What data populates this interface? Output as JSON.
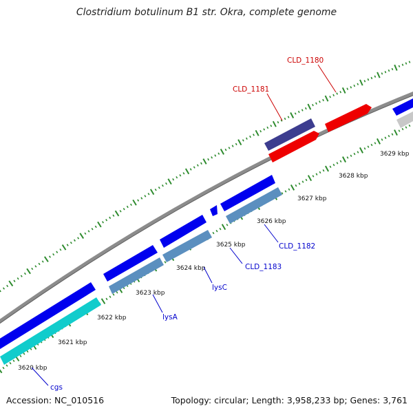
{
  "title": "Clostridium botulinum B1 str. Okra, complete genome",
  "footer": {
    "accession": "Accession: NC_010516",
    "summary": "Topology: circular; Length: 3,958,233 bp; Genes: 3,761"
  },
  "colors": {
    "backbone": "#8c8c8c",
    "dots": "#2e8b2e",
    "blue": "#0000ee",
    "steel": "#5b8fbf",
    "cyan": "#11cccc",
    "navy": "#3d3d8f",
    "red": "#ee0000",
    "silver": "#c8c8c8",
    "label_blue": "#0000cc",
    "label_red": "#cc0000"
  },
  "ticks": [
    {
      "label": "3620 kbp"
    },
    {
      "label": "3621 kbp"
    },
    {
      "label": "3622 kbp"
    },
    {
      "label": "3623 kbp"
    },
    {
      "label": "3624 kbp"
    },
    {
      "label": "3625 kbp"
    },
    {
      "label": "3626 kbp"
    },
    {
      "label": "3627 kbp"
    },
    {
      "label": "3628 kbp"
    },
    {
      "label": "3629 kbp"
    }
  ],
  "gene_labels": [
    {
      "text": "cgs"
    },
    {
      "text": "lysA"
    },
    {
      "text": "lysC"
    },
    {
      "text": "CLD_1183"
    },
    {
      "text": "CLD_1182"
    },
    {
      "text": "CLD_1181"
    },
    {
      "text": "CLD_1180"
    }
  ]
}
